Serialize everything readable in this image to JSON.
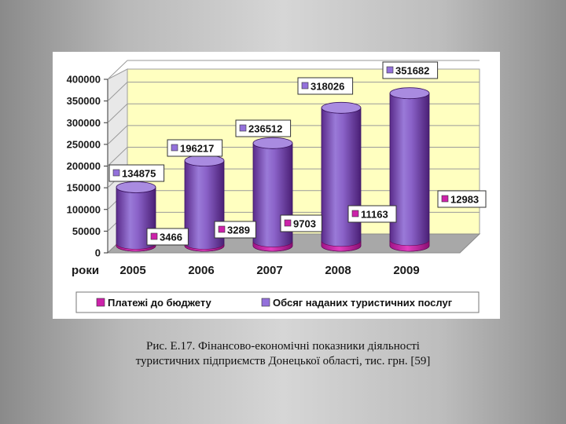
{
  "chart_data": {
    "type": "bar",
    "categories": [
      "2005",
      "2006",
      "2007",
      "2008",
      "2009"
    ],
    "series": [
      {
        "name": "Платежі до бюджету",
        "color": "#cc22aa",
        "values": [
          3466,
          3289,
          9703,
          11163,
          12983
        ]
      },
      {
        "name": "Обсяг наданих туристичних послуг",
        "color": "#9370db",
        "values": [
          134875,
          196217,
          236512,
          318026,
          351682
        ]
      }
    ],
    "y_ticks": [
      "0",
      "50000",
      "100000",
      "150000",
      "200000",
      "250000",
      "300000",
      "350000",
      "400000"
    ],
    "ylim": [
      0,
      400000
    ],
    "xlabel": "роки",
    "ylabel": "",
    "title": "",
    "grid": true,
    "legend_position": "bottom",
    "plot_background": "#ffffc0",
    "bar_shape": "cylinder-3d"
  },
  "caption": {
    "line1": "Рис. Е.17. Фінансово-економічні показники діяльності",
    "line2": "туристичних підприємств Донецької області, тис. грн. [59]"
  }
}
